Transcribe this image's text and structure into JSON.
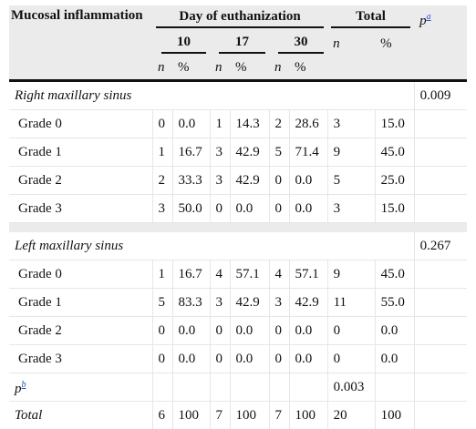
{
  "header": {
    "col_label": "Mucosal inflammation",
    "day_group": "Day of euthanization",
    "total_group": "Total",
    "p_label": "p",
    "p_footnote": "a",
    "days": [
      "10",
      "17",
      "30"
    ],
    "n_label": "n",
    "pct_label": "%"
  },
  "sections": [
    {
      "title": "Right maxillary sinus",
      "p_value": "0.009",
      "rows": [
        {
          "label": "Grade 0",
          "d10_n": "0",
          "d10_pct": "0.0",
          "d17_n": "1",
          "d17_pct": "14.3",
          "d30_n": "2",
          "d30_pct": "28.6",
          "tot_n": "3",
          "tot_pct": "15.0"
        },
        {
          "label": "Grade 1",
          "d10_n": "1",
          "d10_pct": "16.7",
          "d17_n": "3",
          "d17_pct": "42.9",
          "d30_n": "5",
          "d30_pct": "71.4",
          "tot_n": "9",
          "tot_pct": "45.0"
        },
        {
          "label": "Grade 2",
          "d10_n": "2",
          "d10_pct": "33.3",
          "d17_n": "3",
          "d17_pct": "42.9",
          "d30_n": "0",
          "d30_pct": "0.0",
          "tot_n": "5",
          "tot_pct": "25.0"
        },
        {
          "label": "Grade 3",
          "d10_n": "3",
          "d10_pct": "50.0",
          "d17_n": "0",
          "d17_pct": "0.0",
          "d30_n": "0",
          "d30_pct": "0.0",
          "tot_n": "3",
          "tot_pct": "15.0"
        }
      ]
    },
    {
      "title": "Left maxillary sinus",
      "p_value": "0.267",
      "rows": [
        {
          "label": "Grade 0",
          "d10_n": "1",
          "d10_pct": "16.7",
          "d17_n": "4",
          "d17_pct": "57.1",
          "d30_n": "4",
          "d30_pct": "57.1",
          "tot_n": "9",
          "tot_pct": "45.0"
        },
        {
          "label": "Grade 1",
          "d10_n": "5",
          "d10_pct": "83.3",
          "d17_n": "3",
          "d17_pct": "42.9",
          "d30_n": "3",
          "d30_pct": "42.9",
          "tot_n": "11",
          "tot_pct": "55.0"
        },
        {
          "label": "Grade 2",
          "d10_n": "0",
          "d10_pct": "0.0",
          "d17_n": "0",
          "d17_pct": "0.0",
          "d30_n": "0",
          "d30_pct": "0.0",
          "tot_n": "0",
          "tot_pct": "0.0"
        },
        {
          "label": "Grade 3",
          "d10_n": "0",
          "d10_pct": "0.0",
          "d17_n": "0",
          "d17_pct": "0.0",
          "d30_n": "0",
          "d30_pct": "0.0",
          "tot_n": "0",
          "tot_pct": "0.0"
        }
      ]
    }
  ],
  "pb_row": {
    "label": "p",
    "footnote": "b",
    "value": "0.003"
  },
  "total_row": {
    "label": "Total",
    "d10_n": "6",
    "d10_pct": "100",
    "d17_n": "7",
    "d17_pct": "100",
    "d30_n": "7",
    "d30_pct": "100",
    "tot_n": "20",
    "tot_pct": "100"
  }
}
